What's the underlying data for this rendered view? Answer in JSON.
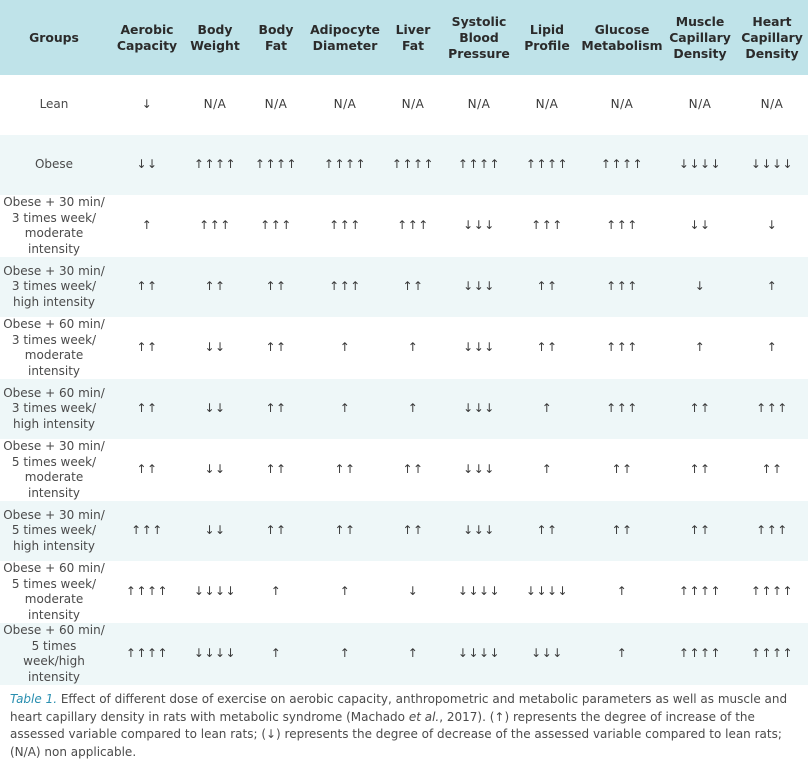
{
  "table": {
    "headers": [
      "Groups",
      "Aerobic\nCapacity",
      "Body\nWeight",
      "Body\nFat",
      "Adipocyte\nDiameter",
      "Liver\nFat",
      "Systolic\nBlood\nPressure",
      "Lipid\nProfile",
      "Glucose\nMetabolism",
      "Muscle\nCapillary\nDensity",
      "Heart\nCapillary\nDensity"
    ],
    "rows": [
      [
        "Lean",
        "↓",
        "N/A",
        "N/A",
        "N/A",
        "N/A",
        "N/A",
        "N/A",
        "N/A",
        "N/A",
        "N/A"
      ],
      [
        "Obese",
        "↓↓",
        "↑↑↑↑",
        "↑↑↑↑",
        "↑↑↑↑",
        "↑↑↑↑",
        "↑↑↑↑",
        "↑↑↑↑",
        "↑↑↑↑",
        "↓↓↓↓",
        "↓↓↓↓"
      ],
      [
        "Obese + 30 min/\n3 times week/\nmoderate intensity",
        "↑",
        "↑↑↑",
        "↑↑↑",
        "↑↑↑",
        "↑↑↑",
        "↓↓↓",
        "↑↑↑",
        "↑↑↑",
        "↓↓",
        "↓"
      ],
      [
        "Obese + 30 min/\n3 times week/\nhigh intensity",
        "↑↑",
        "↑↑",
        "↑↑",
        "↑↑↑",
        "↑↑",
        "↓↓↓",
        "↑↑",
        "↑↑↑",
        "↓",
        "↑"
      ],
      [
        "Obese + 60 min/\n3 times week/\nmoderate intensity",
        "↑↑",
        "↓↓",
        "↑↑",
        "↑",
        "↑",
        "↓↓↓",
        "↑↑",
        "↑↑↑",
        "↑",
        "↑"
      ],
      [
        "Obese + 60 min/\n3 times week/\nhigh intensity",
        "↑↑",
        "↓↓",
        "↑↑",
        "↑",
        "↑",
        "↓↓↓",
        "↑",
        "↑↑↑",
        "↑↑",
        "↑↑↑"
      ],
      [
        "Obese + 30 min/\n5 times week/\nmoderate intensity",
        "↑↑",
        "↓↓",
        "↑↑",
        "↑↑",
        "↑↑",
        "↓↓↓",
        "↑",
        "↑↑",
        "↑↑",
        "↑↑"
      ],
      [
        "Obese + 30 min/\n5 times week/\nhigh intensity",
        "↑↑↑",
        "↓↓",
        "↑↑",
        "↑↑",
        "↑↑",
        "↓↓↓",
        "↑↑",
        "↑↑",
        "↑↑",
        "↑↑↑"
      ],
      [
        "Obese + 60 min/\n5 times week/\nmoderate intensity",
        "↑↑↑↑",
        "↓↓↓↓",
        "↑",
        "↑",
        "↓",
        "↓↓↓↓",
        "↓↓↓↓",
        "↑",
        "↑↑↑↑",
        "↑↑↑↑"
      ],
      [
        "Obese + 60 min/\n5 times week/high\nintensity",
        "↑↑↑↑",
        "↓↓↓↓",
        "↑",
        "↑",
        "↑",
        "↓↓↓↓",
        "↓↓↓",
        "↑",
        "↑↑↑↑",
        "↑↑↑↑"
      ]
    ]
  },
  "caption": {
    "label": "Table 1.",
    "text_part1": " Effect of different dose of exercise on aerobic capacity, anthropometric and metabolic parameters as well as muscle and heart capillary density in rats with metabolic syndrome (Machado ",
    "et_al": "et al.",
    "text_part2": ", 2017). (↑) represents the degree of increase of the assessed variable compared to lean rats; (↓) represents the degree of decrease of the assessed variable compared to lean rats; (N/A) non applicable."
  }
}
